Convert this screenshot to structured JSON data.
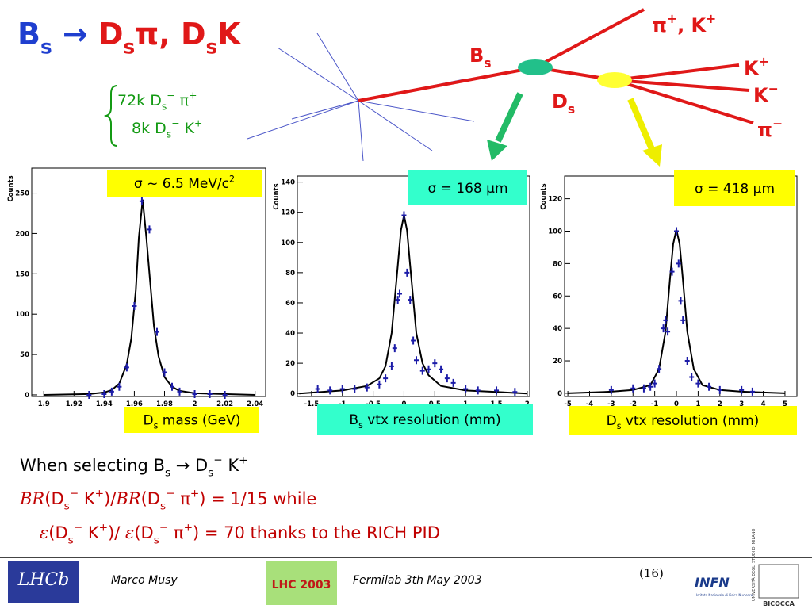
{
  "title": [
    "B",
    "s",
    " → ",
    "D",
    "s",
    "π, D",
    "s",
    "K"
  ],
  "decays": [
    [
      "72k D",
      "s",
      "−",
      " π",
      "+"
    ],
    [
      "8k D",
      "s",
      "−",
      " K",
      "+"
    ]
  ],
  "diagram": {
    "pi_k": [
      "π",
      "+",
      ", K",
      "+"
    ],
    "bs": [
      "B",
      "s"
    ],
    "ds": [
      "D",
      "s"
    ],
    "k_plus": [
      "K",
      "+"
    ],
    "k_minus": [
      "K",
      "−"
    ],
    "pi_minus": [
      "π",
      "−"
    ]
  },
  "chart_data": [
    {
      "type": "scatter",
      "y_label": "Counts",
      "x_label": [
        "D",
        "s",
        " mass (GeV)"
      ],
      "annotation": [
        "σ ~ 6.5 MeV/c",
        "2"
      ],
      "box_color": "#ffff00",
      "xlim": [
        1.892,
        2.047
      ],
      "xticks": [
        1.9,
        1.92,
        1.94,
        1.96,
        1.98,
        2,
        2.02,
        2.04
      ],
      "ylim": [
        -2,
        281
      ],
      "yticks": [
        0,
        50,
        100,
        150,
        200,
        250
      ],
      "series": [
        {
          "color": "#1c1ca8",
          "x": [
            1.93,
            1.94,
            1.945,
            1.95,
            1.955,
            1.96,
            1.965,
            1.97,
            1.975,
            1.98,
            1.985,
            1.99,
            2.0,
            2.01,
            2.02
          ],
          "values": [
            0,
            1,
            4,
            10,
            34,
            110,
            240,
            205,
            78,
            28,
            10,
            4,
            1,
            1,
            0
          ]
        }
      ],
      "fit": {
        "color": "#000000",
        "x": [
          1.9,
          1.93,
          1.94,
          1.945,
          1.95,
          1.955,
          1.958,
          1.961,
          1.963,
          1.9655,
          1.968,
          1.97,
          1.973,
          1.976,
          1.98,
          1.985,
          1.99,
          2.0,
          2.04
        ],
        "values": [
          0,
          1,
          3,
          6,
          14,
          38,
          70,
          130,
          195,
          242,
          195,
          150,
          85,
          48,
          22,
          10,
          5,
          2,
          0
        ]
      }
    },
    {
      "type": "scatter",
      "y_label": "Counts",
      "x_label": [
        "B",
        "s",
        " vtx resolution (mm)"
      ],
      "annotation": [
        "σ = 168 μm"
      ],
      "box_color": "#33ffcc",
      "xlim": [
        -1.73,
        2.04
      ],
      "xticks": [
        -1.5,
        -1,
        -0.5,
        0,
        0.5,
        1,
        1.5,
        2
      ],
      "ylim": [
        -2,
        144
      ],
      "yticks": [
        0,
        20,
        40,
        60,
        80,
        100,
        120,
        140
      ],
      "series": [
        {
          "color": "#1c1ca8",
          "x": [
            -1.4,
            -1.2,
            -1,
            -0.8,
            -0.6,
            -0.4,
            -0.3,
            -0.2,
            -0.15,
            -0.1,
            -0.07,
            0,
            0.05,
            0.1,
            0.15,
            0.2,
            0.3,
            0.4,
            0.5,
            0.6,
            0.7,
            0.8,
            1,
            1.2,
            1.5,
            1.8
          ],
          "values": [
            3,
            2,
            3,
            3,
            4,
            6,
            10,
            18,
            30,
            62,
            66,
            118,
            80,
            62,
            35,
            22,
            15,
            16,
            20,
            16,
            10,
            7,
            3,
            2,
            2,
            1
          ]
        }
      ],
      "fit": {
        "color": "#000000",
        "x": [
          -1.7,
          -1,
          -0.6,
          -0.4,
          -0.3,
          -0.2,
          -0.1,
          -0.05,
          0,
          0.05,
          0.1,
          0.2,
          0.3,
          0.4,
          0.6,
          1,
          2
        ],
        "values": [
          0,
          2,
          5,
          10,
          18,
          40,
          85,
          108,
          118,
          108,
          85,
          40,
          20,
          12,
          5,
          2,
          0
        ]
      }
    },
    {
      "type": "scatter",
      "y_label": "Counts",
      "x_label": [
        "D",
        "s",
        " vtx resolution (mm)"
      ],
      "annotation": [
        "σ = 418 μm"
      ],
      "box_color": "#ffff00",
      "xlim": [
        -5.15,
        5.55
      ],
      "xticks": [
        -5,
        -4,
        -3,
        -2,
        -1,
        0,
        1,
        2,
        3,
        4,
        5
      ],
      "ylim": [
        -2,
        134
      ],
      "yticks": [
        0,
        20,
        40,
        60,
        80,
        100,
        120
      ],
      "series": [
        {
          "color": "#1c1ca8",
          "x": [
            -3,
            -2,
            -1.5,
            -1.2,
            -1,
            -0.8,
            -0.6,
            -0.5,
            -0.4,
            -0.2,
            0,
            0.1,
            0.2,
            0.3,
            0.5,
            0.7,
            1,
            1.5,
            2,
            3,
            3.5
          ],
          "values": [
            2,
            3,
            3,
            4,
            6,
            15,
            40,
            45,
            38,
            75,
            100,
            80,
            57,
            45,
            20,
            10,
            6,
            4,
            2,
            2,
            1
          ]
        }
      ],
      "fit": {
        "color": "#000000",
        "x": [
          -5,
          -3,
          -2,
          -1.2,
          -0.8,
          -0.5,
          -0.3,
          -0.15,
          0,
          0.15,
          0.3,
          0.5,
          0.8,
          1.2,
          2,
          3,
          5
        ],
        "values": [
          0,
          1,
          2,
          5,
          15,
          38,
          70,
          92,
          101,
          92,
          70,
          38,
          15,
          5,
          2,
          1,
          0
        ]
      }
    }
  ],
  "text_lines": [
    [
      "When selecting B",
      "s",
      " → D",
      "s",
      "−",
      " K",
      "+"
    ],
    [
      "BR",
      "(D",
      "s",
      "−",
      " K",
      "+",
      ")/",
      "BR",
      "(D",
      "s",
      "−",
      " π",
      "+",
      ") = 1/15 while"
    ],
    [
      "ε",
      "(D",
      "s",
      "−",
      " K",
      "+",
      ")/   ",
      "ε",
      "(D",
      "s",
      "−",
      " π",
      "+",
      ") = 70 thanks to the RICH PID"
    ]
  ],
  "footer": {
    "author": "Marco Musy",
    "event": "Fermilab 3th May 2003",
    "page": "(16)",
    "lhcb": "LHCb",
    "lhc2003": "LHC 2003",
    "infn": "INFN",
    "infn_full": "Istituto Nazionale di Fisica Nucleare",
    "university": "UNIVERSITÀ DEGLI STUDI DI MILANO",
    "bicocca": "BICOCCA"
  }
}
